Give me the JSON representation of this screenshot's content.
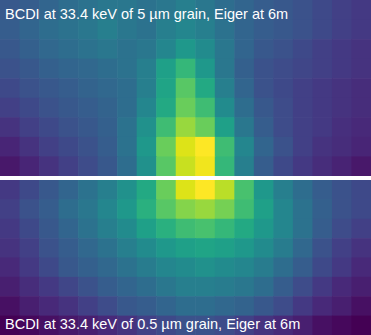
{
  "chart_data": [
    {
      "type": "heatmap",
      "title": "BCDI at 33.4 keV of 5 µm grain, Eiger at 6m",
      "tick_labels": false,
      "cells": [
        [
          0.3,
          0.32,
          0.35,
          0.38,
          0.4,
          0.42,
          0.42,
          0.4,
          0.42,
          0.45,
          0.42,
          0.38,
          0.35,
          0.32,
          0.3,
          0.28,
          0.25,
          0.22,
          0.2
        ],
        [
          0.32,
          0.35,
          0.38,
          0.4,
          0.42,
          0.45,
          0.42,
          0.4,
          0.45,
          0.48,
          0.45,
          0.4,
          0.35,
          0.32,
          0.3,
          0.28,
          0.25,
          0.22,
          0.2
        ],
        [
          0.3,
          0.33,
          0.36,
          0.38,
          0.4,
          0.42,
          0.4,
          0.42,
          0.48,
          0.55,
          0.5,
          0.42,
          0.35,
          0.3,
          0.28,
          0.25,
          0.22,
          0.2,
          0.18
        ],
        [
          0.28,
          0.3,
          0.33,
          0.35,
          0.36,
          0.38,
          0.4,
          0.45,
          0.58,
          0.68,
          0.55,
          0.42,
          0.33,
          0.28,
          0.26,
          0.24,
          0.22,
          0.2,
          0.18
        ],
        [
          0.25,
          0.28,
          0.3,
          0.32,
          0.34,
          0.36,
          0.38,
          0.45,
          0.6,
          0.75,
          0.62,
          0.45,
          0.35,
          0.28,
          0.25,
          0.22,
          0.2,
          0.18,
          0.16
        ],
        [
          0.22,
          0.25,
          0.28,
          0.3,
          0.32,
          0.34,
          0.38,
          0.48,
          0.62,
          0.78,
          0.7,
          0.5,
          0.38,
          0.3,
          0.26,
          0.22,
          0.2,
          0.18,
          0.16
        ],
        [
          0.18,
          0.22,
          0.25,
          0.28,
          0.3,
          0.33,
          0.4,
          0.52,
          0.7,
          0.85,
          0.78,
          0.58,
          0.42,
          0.32,
          0.26,
          0.22,
          0.2,
          0.17,
          0.15
        ],
        [
          0.14,
          0.18,
          0.22,
          0.25,
          0.28,
          0.32,
          0.4,
          0.55,
          0.78,
          0.95,
          1.0,
          0.7,
          0.48,
          0.35,
          0.28,
          0.22,
          0.18,
          0.16,
          0.14
        ],
        [
          0.1,
          0.14,
          0.18,
          0.22,
          0.26,
          0.3,
          0.38,
          0.52,
          0.75,
          0.92,
          0.98,
          0.68,
          0.45,
          0.32,
          0.25,
          0.2,
          0.16,
          0.13,
          0.1
        ]
      ]
    },
    {
      "type": "heatmap",
      "title": "BCDI at 33.4 keV of 0.5 µm grain, Eiger at 6m",
      "tick_labels": false,
      "cells": [
        [
          0.2,
          0.25,
          0.3,
          0.35,
          0.4,
          0.45,
          0.52,
          0.62,
          0.78,
          0.95,
          1.0,
          0.9,
          0.72,
          0.55,
          0.45,
          0.38,
          0.32,
          0.28,
          0.25
        ],
        [
          0.22,
          0.28,
          0.32,
          0.38,
          0.42,
          0.48,
          0.55,
          0.65,
          0.75,
          0.82,
          0.85,
          0.8,
          0.7,
          0.58,
          0.48,
          0.4,
          0.33,
          0.28,
          0.25
        ],
        [
          0.2,
          0.25,
          0.3,
          0.35,
          0.4,
          0.45,
          0.5,
          0.58,
          0.65,
          0.7,
          0.72,
          0.68,
          0.62,
          0.55,
          0.48,
          0.4,
          0.32,
          0.26,
          0.22
        ],
        [
          0.18,
          0.22,
          0.28,
          0.32,
          0.36,
          0.4,
          0.45,
          0.5,
          0.55,
          0.58,
          0.6,
          0.58,
          0.55,
          0.5,
          0.44,
          0.36,
          0.28,
          0.22,
          0.18
        ],
        [
          0.15,
          0.2,
          0.25,
          0.3,
          0.33,
          0.36,
          0.4,
          0.44,
          0.48,
          0.5,
          0.52,
          0.5,
          0.48,
          0.44,
          0.38,
          0.32,
          0.25,
          0.2,
          0.15
        ],
        [
          0.12,
          0.16,
          0.2,
          0.24,
          0.28,
          0.32,
          0.35,
          0.38,
          0.42,
          0.45,
          0.45,
          0.44,
          0.42,
          0.38,
          0.32,
          0.26,
          0.2,
          0.15,
          0.12
        ],
        [
          0.08,
          0.12,
          0.15,
          0.18,
          0.22,
          0.26,
          0.3,
          0.32,
          0.35,
          0.38,
          0.38,
          0.36,
          0.34,
          0.3,
          0.26,
          0.2,
          0.15,
          0.12,
          0.08
        ],
        [
          0.04,
          0.06,
          0.08,
          0.1,
          0.12,
          0.15,
          0.18,
          0.22,
          0.25,
          0.28,
          0.28,
          0.26,
          0.22,
          0.18,
          0.15,
          0.12,
          0.08,
          0.06,
          0.04
        ]
      ]
    }
  ]
}
